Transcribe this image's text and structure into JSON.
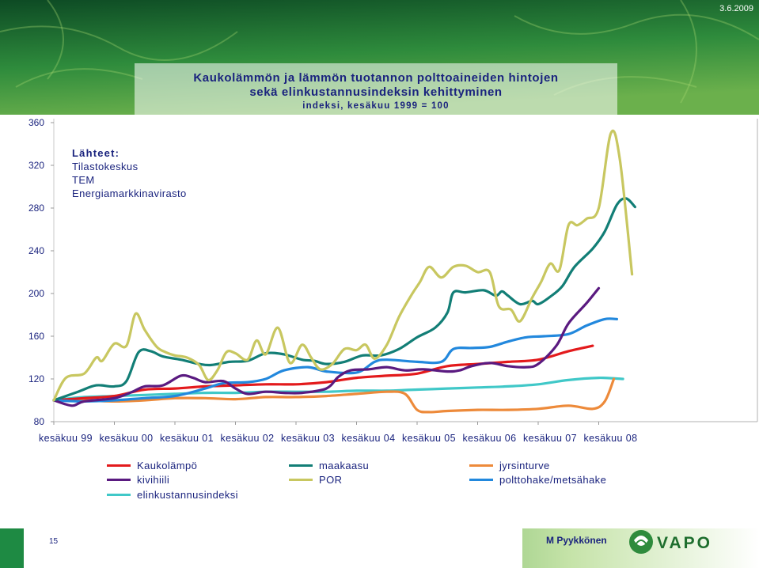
{
  "header": {
    "date": "3.6.2009",
    "title_line1": "Kaukolämmön ja lämmön tuotannon polttoaineiden hintojen",
    "title_line2": "sekä elinkustannusindeksin kehittyminen",
    "subtitle": "indeksi, kesäkuu 1999 = 100"
  },
  "sources": {
    "heading": "Lähteet:",
    "items": [
      "Tilastokeskus",
      "TEM",
      "Energiamarkkinavirasto"
    ]
  },
  "footer": {
    "page_number": "15",
    "author": "M Pyykkönen",
    "logo_text": "VAPO"
  },
  "colors": {
    "banner_top": "#0d4a24",
    "banner_bottom": "#2e8b3c",
    "text": "#1a237e"
  },
  "chart_data": {
    "type": "line",
    "ylim": [
      80,
      360
    ],
    "yticks": [
      80,
      120,
      160,
      200,
      240,
      280,
      320,
      360
    ],
    "xlim": [
      1999.5,
      2009.5
    ],
    "x_tick_labels": [
      {
        "x": 1999.5,
        "label": "kesäkuu 99"
      },
      {
        "x": 2000.5,
        "label": "kesäkuu 00"
      },
      {
        "x": 2001.5,
        "label": "kesäkuu 01"
      },
      {
        "x": 2002.5,
        "label": "kesäkuu 02"
      },
      {
        "x": 2003.5,
        "label": "kesäkuu 03"
      },
      {
        "x": 2004.5,
        "label": "kesäkuu 04"
      },
      {
        "x": 2005.5,
        "label": "kesäkuu 05"
      },
      {
        "x": 2006.5,
        "label": "kesäkuu 06"
      },
      {
        "x": 2007.5,
        "label": "kesäkuu 07"
      },
      {
        "x": 2008.5,
        "label": "kesäkuu 08"
      }
    ],
    "series": [
      {
        "name": "Kaukolämpö",
        "color": "#e31a1c",
        "points": [
          [
            1999.5,
            100
          ],
          [
            2000.0,
            102
          ],
          [
            2000.5,
            104
          ],
          [
            2001.0,
            110
          ],
          [
            2001.5,
            111
          ],
          [
            2002.0,
            113
          ],
          [
            2002.5,
            114
          ],
          [
            2003.0,
            115
          ],
          [
            2003.5,
            115
          ],
          [
            2004.0,
            117
          ],
          [
            2004.5,
            121
          ],
          [
            2005.0,
            123
          ],
          [
            2005.5,
            125
          ],
          [
            2006.0,
            132
          ],
          [
            2006.5,
            134
          ],
          [
            2007.0,
            136
          ],
          [
            2007.5,
            138
          ],
          [
            2008.0,
            146
          ],
          [
            2008.4,
            151
          ]
        ]
      },
      {
        "name": "maakaasu",
        "color": "#127e76",
        "points": [
          [
            1999.5,
            100
          ],
          [
            1999.9,
            108
          ],
          [
            2000.2,
            114
          ],
          [
            2000.5,
            113
          ],
          [
            2000.7,
            118
          ],
          [
            2000.9,
            145
          ],
          [
            2001.1,
            146
          ],
          [
            2001.3,
            141
          ],
          [
            2001.6,
            138
          ],
          [
            2001.9,
            134
          ],
          [
            2002.1,
            133
          ],
          [
            2002.4,
            136
          ],
          [
            2002.7,
            137
          ],
          [
            2003.0,
            144
          ],
          [
            2003.3,
            143
          ],
          [
            2003.6,
            138
          ],
          [
            2003.8,
            137
          ],
          [
            2004.0,
            134
          ],
          [
            2004.3,
            136
          ],
          [
            2004.6,
            142
          ],
          [
            2004.9,
            142
          ],
          [
            2005.2,
            148
          ],
          [
            2005.5,
            159
          ],
          [
            2005.8,
            168
          ],
          [
            2006.0,
            182
          ],
          [
            2006.1,
            201
          ],
          [
            2006.3,
            201
          ],
          [
            2006.6,
            203
          ],
          [
            2006.8,
            198
          ],
          [
            2006.9,
            202
          ],
          [
            2007.0,
            198
          ],
          [
            2007.2,
            190
          ],
          [
            2007.4,
            193
          ],
          [
            2007.5,
            190
          ],
          [
            2007.7,
            197
          ],
          [
            2007.9,
            207
          ],
          [
            2008.1,
            225
          ],
          [
            2008.4,
            242
          ],
          [
            2008.6,
            258
          ],
          [
            2008.8,
            283
          ],
          [
            2008.95,
            289
          ],
          [
            2009.1,
            281
          ]
        ]
      },
      {
        "name": "jyrsinturve",
        "color": "#ed8a3a",
        "points": [
          [
            1999.5,
            100
          ],
          [
            2000.0,
            100
          ],
          [
            2000.5,
            99
          ],
          [
            2001.0,
            100
          ],
          [
            2001.5,
            102
          ],
          [
            2002.0,
            102
          ],
          [
            2002.5,
            101
          ],
          [
            2003.0,
            103
          ],
          [
            2003.5,
            103
          ],
          [
            2004.0,
            104
          ],
          [
            2004.5,
            106
          ],
          [
            2005.0,
            108
          ],
          [
            2005.3,
            106
          ],
          [
            2005.5,
            91
          ],
          [
            2005.7,
            89
          ],
          [
            2006.0,
            90
          ],
          [
            2006.5,
            91
          ],
          [
            2007.0,
            91
          ],
          [
            2007.5,
            92
          ],
          [
            2008.0,
            95
          ],
          [
            2008.4,
            92
          ],
          [
            2008.6,
            99
          ],
          [
            2008.75,
            120
          ]
        ]
      },
      {
        "name": "kivihiili",
        "color": "#5a1a80",
        "points": [
          [
            1999.5,
            100
          ],
          [
            1999.8,
            95
          ],
          [
            2000.0,
            99
          ],
          [
            2000.5,
            102
          ],
          [
            2000.8,
            108
          ],
          [
            2001.0,
            113
          ],
          [
            2001.3,
            114
          ],
          [
            2001.6,
            123
          ],
          [
            2001.8,
            121
          ],
          [
            2002.0,
            117
          ],
          [
            2002.3,
            118
          ],
          [
            2002.5,
            111
          ],
          [
            2002.7,
            106
          ],
          [
            2003.0,
            108
          ],
          [
            2003.3,
            107
          ],
          [
            2003.6,
            107
          ],
          [
            2004.0,
            111
          ],
          [
            2004.2,
            122
          ],
          [
            2004.4,
            128
          ],
          [
            2004.7,
            129
          ],
          [
            2005.0,
            131
          ],
          [
            2005.3,
            128
          ],
          [
            2005.6,
            129
          ],
          [
            2006.0,
            127
          ],
          [
            2006.2,
            128
          ],
          [
            2006.4,
            132
          ],
          [
            2006.7,
            135
          ],
          [
            2007.0,
            132
          ],
          [
            2007.3,
            131
          ],
          [
            2007.5,
            134
          ],
          [
            2007.8,
            151
          ],
          [
            2008.0,
            172
          ],
          [
            2008.3,
            191
          ],
          [
            2008.5,
            205
          ]
        ]
      },
      {
        "name": "POR",
        "color": "#c8c760",
        "points": [
          [
            1999.5,
            100
          ],
          [
            1999.7,
            121
          ],
          [
            2000.0,
            125
          ],
          [
            2000.2,
            140
          ],
          [
            2000.3,
            137
          ],
          [
            2000.5,
            153
          ],
          [
            2000.7,
            151
          ],
          [
            2000.85,
            181
          ],
          [
            2001.0,
            166
          ],
          [
            2001.2,
            150
          ],
          [
            2001.35,
            145
          ],
          [
            2001.5,
            142
          ],
          [
            2001.7,
            140
          ],
          [
            2001.9,
            133
          ],
          [
            2002.05,
            119
          ],
          [
            2002.2,
            128
          ],
          [
            2002.35,
            145
          ],
          [
            2002.5,
            144
          ],
          [
            2002.7,
            138
          ],
          [
            2002.85,
            156
          ],
          [
            2003.0,
            143
          ],
          [
            2003.2,
            168
          ],
          [
            2003.4,
            135
          ],
          [
            2003.6,
            152
          ],
          [
            2003.75,
            140
          ],
          [
            2003.9,
            129
          ],
          [
            2004.1,
            134
          ],
          [
            2004.3,
            148
          ],
          [
            2004.5,
            147
          ],
          [
            2004.65,
            152
          ],
          [
            2004.8,
            139
          ],
          [
            2005.0,
            152
          ],
          [
            2005.2,
            178
          ],
          [
            2005.4,
            198
          ],
          [
            2005.55,
            211
          ],
          [
            2005.7,
            225
          ],
          [
            2005.9,
            215
          ],
          [
            2006.1,
            225
          ],
          [
            2006.3,
            226
          ],
          [
            2006.5,
            220
          ],
          [
            2006.7,
            220
          ],
          [
            2006.85,
            188
          ],
          [
            2007.05,
            185
          ],
          [
            2007.2,
            174
          ],
          [
            2007.4,
            196
          ],
          [
            2007.55,
            211
          ],
          [
            2007.7,
            228
          ],
          [
            2007.85,
            222
          ],
          [
            2008.0,
            264
          ],
          [
            2008.15,
            264
          ],
          [
            2008.3,
            270
          ],
          [
            2008.5,
            280
          ],
          [
            2008.7,
            350
          ],
          [
            2008.85,
            325
          ],
          [
            2009.05,
            218
          ]
        ]
      },
      {
        "name": "polttohake/metsähake",
        "color": "#2288dd",
        "points": [
          [
            1999.5,
            100
          ],
          [
            2000.0,
            99
          ],
          [
            2000.5,
            100
          ],
          [
            2001.0,
            102
          ],
          [
            2001.5,
            104
          ],
          [
            2002.0,
            111
          ],
          [
            2002.3,
            116
          ],
          [
            2002.7,
            117
          ],
          [
            2003.0,
            120
          ],
          [
            2003.3,
            128
          ],
          [
            2003.7,
            131
          ],
          [
            2004.0,
            127
          ],
          [
            2004.5,
            126
          ],
          [
            2004.8,
            136
          ],
          [
            2005.0,
            138
          ],
          [
            2005.5,
            136
          ],
          [
            2005.9,
            136
          ],
          [
            2006.1,
            148
          ],
          [
            2006.4,
            149
          ],
          [
            2006.7,
            150
          ],
          [
            2007.0,
            155
          ],
          [
            2007.3,
            159
          ],
          [
            2007.6,
            160
          ],
          [
            2008.0,
            162
          ],
          [
            2008.3,
            170
          ],
          [
            2008.6,
            176
          ],
          [
            2008.8,
            176
          ]
        ]
      },
      {
        "name": "elinkustannusindeksi",
        "color": "#40c8c8",
        "points": [
          [
            1999.5,
            100
          ],
          [
            2000.0,
            103
          ],
          [
            2000.5,
            104
          ],
          [
            2001.0,
            105
          ],
          [
            2001.5,
            106
          ],
          [
            2002.0,
            107
          ],
          [
            2002.5,
            107
          ],
          [
            2003.0,
            108
          ],
          [
            2003.5,
            108
          ],
          [
            2004.0,
            108
          ],
          [
            2004.5,
            109
          ],
          [
            2005.0,
            109
          ],
          [
            2005.5,
            110
          ],
          [
            2006.0,
            111
          ],
          [
            2006.5,
            112
          ],
          [
            2007.0,
            113
          ],
          [
            2007.5,
            115
          ],
          [
            2008.0,
            119
          ],
          [
            2008.5,
            121
          ],
          [
            2008.9,
            120
          ]
        ]
      }
    ]
  }
}
